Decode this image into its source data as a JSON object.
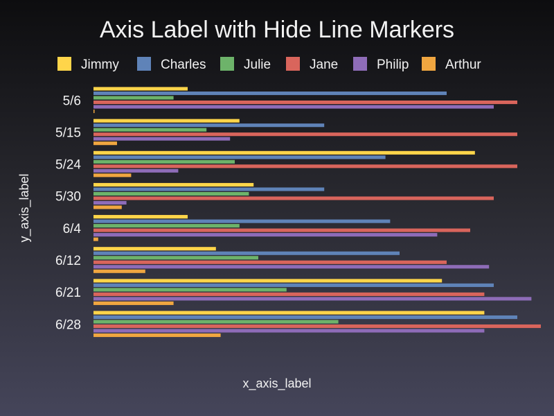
{
  "chart_data": {
    "type": "bar",
    "orientation": "horizontal",
    "title": "Axis Label with Hide Line Markers",
    "xlabel": "x_axis_label",
    "ylabel": "y_axis_label",
    "xlim": [
      0,
      95
    ],
    "grid": false,
    "legend_position": "top",
    "categories": [
      "5/6",
      "5/15",
      "5/24",
      "5/30",
      "6/4",
      "6/12",
      "6/21",
      "6/28"
    ],
    "series": [
      {
        "name": "Jimmy",
        "color": "#ffd54a",
        "values": [
          20,
          31,
          81,
          34,
          20,
          26,
          74,
          83
        ]
      },
      {
        "name": "Charles",
        "color": "#5f83b8",
        "values": [
          75,
          49,
          62,
          49,
          63,
          65,
          85,
          90
        ]
      },
      {
        "name": "Julie",
        "color": "#6db36a",
        "values": [
          17,
          24,
          30,
          33,
          31,
          35,
          41,
          52
        ]
      },
      {
        "name": "Jane",
        "color": "#d9655c",
        "values": [
          90,
          90,
          90,
          85,
          80,
          75,
          83,
          95
        ]
      },
      {
        "name": "Philip",
        "color": "#8e6cb8",
        "values": [
          85,
          29,
          18,
          7,
          73,
          84,
          93,
          83
        ]
      },
      {
        "name": "Arthur",
        "color": "#f0a640",
        "values": [
          0,
          5,
          8,
          6,
          1,
          11,
          17,
          27
        ]
      }
    ]
  }
}
